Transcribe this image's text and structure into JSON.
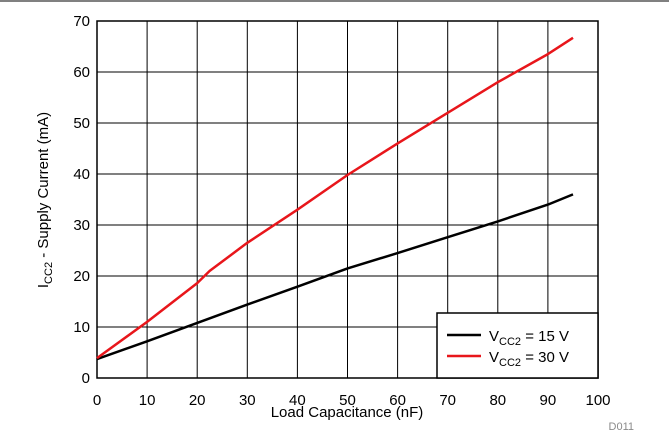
{
  "chart_data": {
    "type": "line",
    "xlabel": "Load Capacitance (nF)",
    "ylabel": {
      "main": "I",
      "sub": "CC2",
      "rest": " - Supply Current (mA)"
    },
    "xlim": [
      0,
      100
    ],
    "ylim": [
      0,
      70
    ],
    "x_ticks": [
      "0",
      "10",
      "20",
      "30",
      "40",
      "50",
      "60",
      "70",
      "80",
      "90",
      "100"
    ],
    "y_ticks": [
      "0",
      "10",
      "20",
      "30",
      "40",
      "50",
      "60",
      "70"
    ],
    "grid": true,
    "legend_position": "bottom-right",
    "series": [
      {
        "name": {
          "main": "V",
          "sub": "CC2",
          "rest": " = 15 V"
        },
        "color": "#000000",
        "x": [
          0,
          10,
          20,
          30,
          40,
          50,
          60,
          70,
          80,
          90,
          95
        ],
        "y": [
          3.7,
          7.2,
          10.8,
          14.4,
          17.9,
          21.5,
          24.5,
          27.6,
          30.7,
          34.0,
          36.0
        ]
      },
      {
        "name": {
          "main": "V",
          "sub": "CC2",
          "rest": " = 30 V"
        },
        "color": "#e8161b",
        "x": [
          0,
          10,
          20,
          22.5,
          30,
          40,
          50,
          60,
          70,
          80,
          90,
          95
        ],
        "y": [
          3.9,
          11.0,
          18.6,
          21.0,
          26.5,
          33.0,
          39.8,
          46.0,
          52.0,
          58.0,
          63.5,
          66.7
        ]
      }
    ],
    "watermark": "D011"
  }
}
